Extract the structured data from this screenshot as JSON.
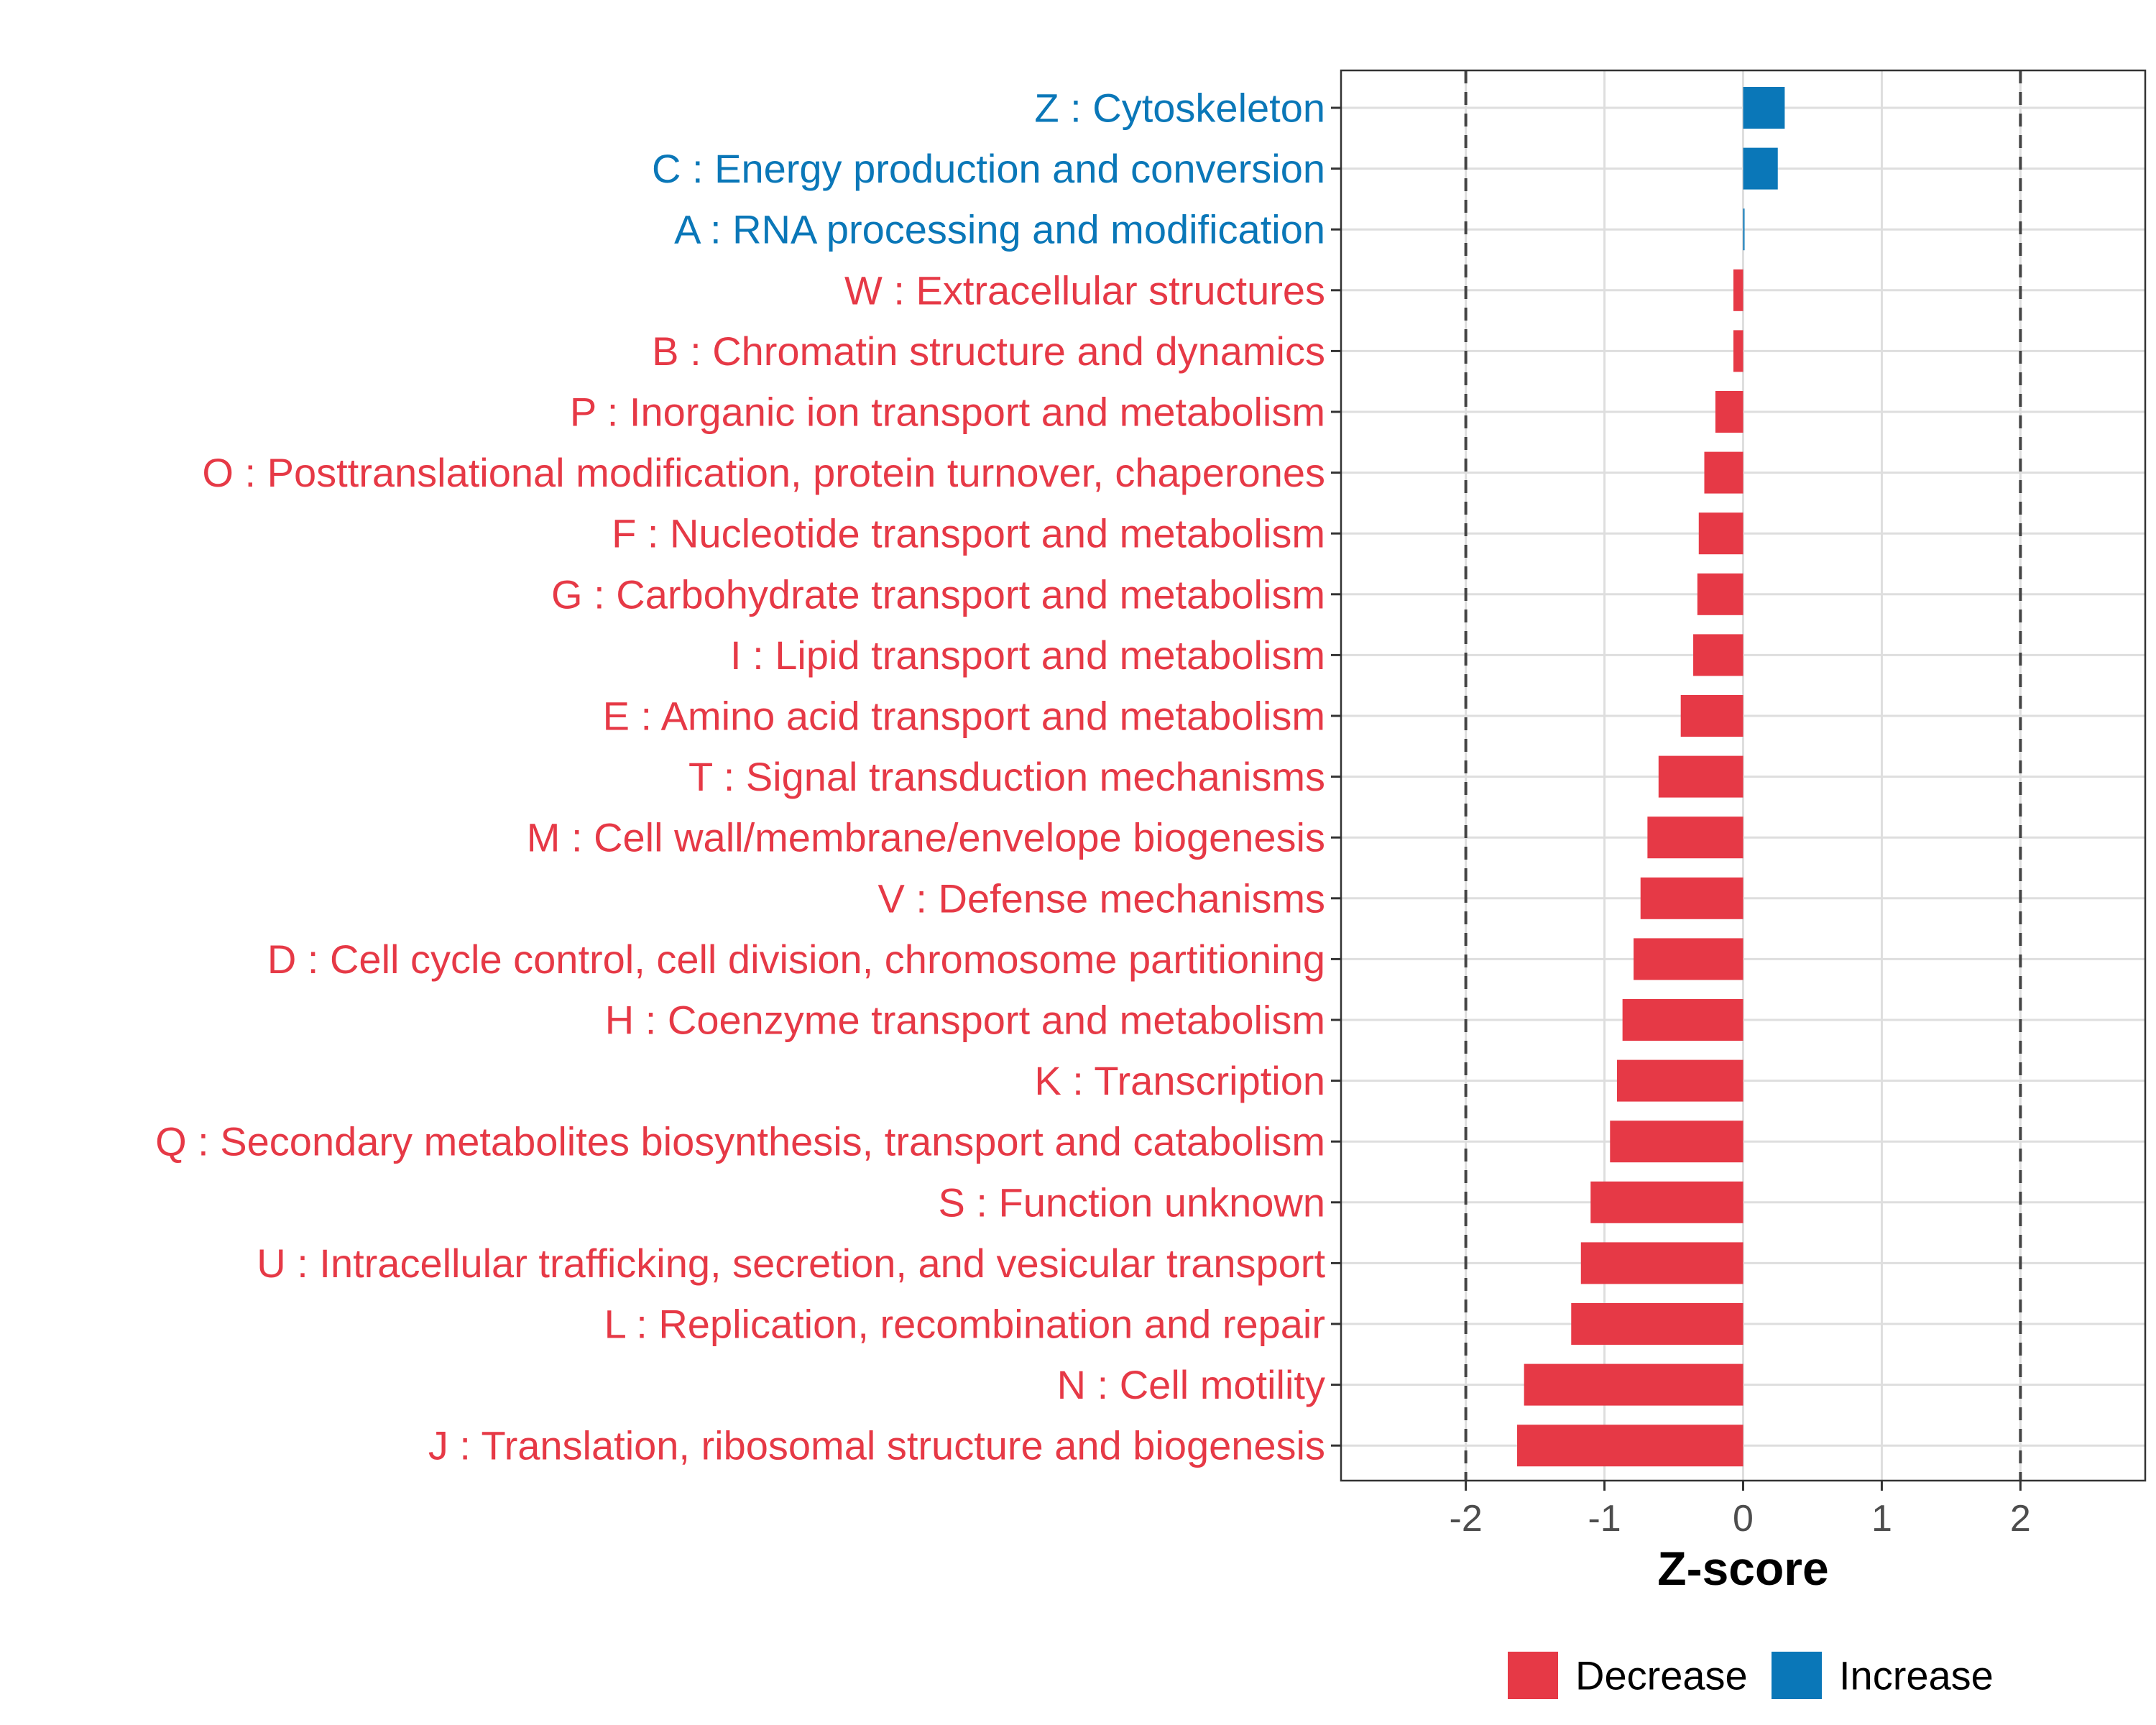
{
  "chart_data": {
    "type": "bar",
    "orientation": "horizontal",
    "title": "",
    "xlabel": "Z-score",
    "ylabel": "",
    "xlim": [
      -2.9,
      2.9
    ],
    "xticks": [
      -2,
      -1,
      0,
      1,
      2
    ],
    "xtick_labels": [
      "-2",
      "-1",
      "0",
      "1",
      "2"
    ],
    "reference_lines": [
      -2,
      2
    ],
    "grid": true,
    "legend_position": "bottom",
    "colors": {
      "Decrease": "#e63946",
      "Increase": "#0a77b8"
    },
    "legend": [
      "Decrease",
      "Increase"
    ],
    "categories": [
      "Z : Cytoskeleton",
      "C : Energy production and conversion",
      "A : RNA processing and modification",
      "W : Extracellular structures",
      "B : Chromatin structure and dynamics",
      "P : Inorganic ion transport and metabolism",
      "O : Posttranslational modification, protein turnover, chaperones",
      "F : Nucleotide transport and metabolism",
      "G : Carbohydrate transport and metabolism",
      "I : Lipid transport and metabolism",
      "E : Amino acid transport and metabolism",
      "T : Signal transduction mechanisms",
      "M : Cell wall/membrane/envelope biogenesis",
      "V : Defense mechanisms",
      "D : Cell cycle control, cell division, chromosome partitioning",
      "H : Coenzyme transport and metabolism",
      "K : Transcription",
      "Q : Secondary metabolites biosynthesis, transport and catabolism",
      "S : Function unknown",
      "U : Intracellular trafficking, secretion, and vesicular transport",
      "L : Replication, recombination and repair",
      "N : Cell motility",
      "J : Translation, ribosomal structure and biogenesis"
    ],
    "values": [
      0.3,
      0.25,
      0.01,
      -0.07,
      -0.07,
      -0.2,
      -0.28,
      -0.32,
      -0.33,
      -0.36,
      -0.45,
      -0.61,
      -0.69,
      -0.74,
      -0.79,
      -0.87,
      -0.91,
      -0.96,
      -1.1,
      -1.17,
      -1.24,
      -1.58,
      -1.63
    ],
    "direction": [
      "Increase",
      "Increase",
      "Increase",
      "Decrease",
      "Decrease",
      "Decrease",
      "Decrease",
      "Decrease",
      "Decrease",
      "Decrease",
      "Decrease",
      "Decrease",
      "Decrease",
      "Decrease",
      "Decrease",
      "Decrease",
      "Decrease",
      "Decrease",
      "Decrease",
      "Decrease",
      "Decrease",
      "Decrease",
      "Decrease"
    ]
  }
}
